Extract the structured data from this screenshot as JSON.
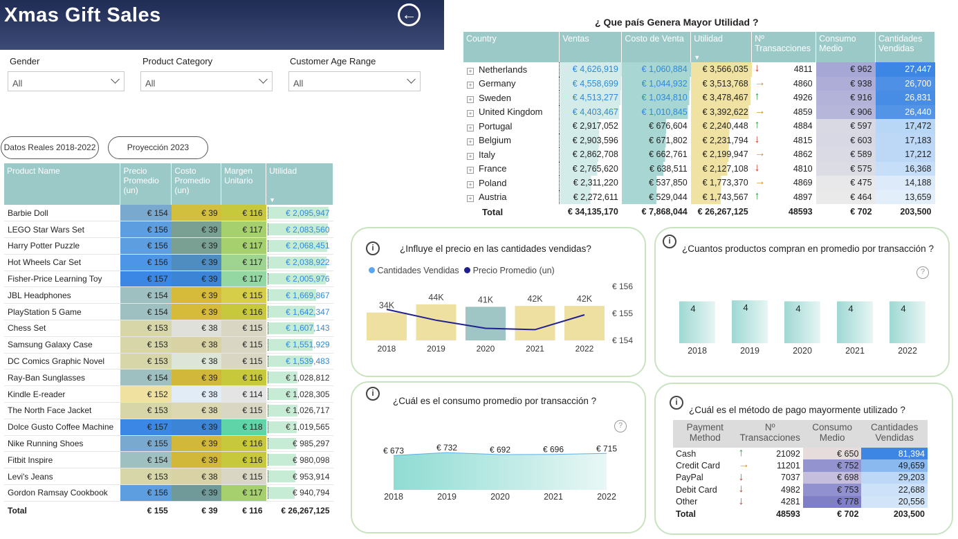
{
  "app_title": "Xmas Gift Sales",
  "back_icon": "arrow-left-circle-icon",
  "filters": [
    {
      "label": "Gender",
      "value": "All"
    },
    {
      "label": "Product Category",
      "value": "All"
    },
    {
      "label": "Customer Age Range",
      "value": "All"
    }
  ],
  "buttons": {
    "real": "Datos Reales 2018-2022",
    "proj": "Proyección 2023"
  },
  "products": {
    "headers": [
      "Product Name",
      "Precio Promedio (un)",
      "Costo Promedio (un)",
      "Margen Unitario",
      "Utilidad"
    ],
    "rows": [
      {
        "name": "Barbie Doll",
        "precio": "€ 154",
        "costo": "€ 39",
        "margen": "€ 116",
        "utilidad": "€ 2,095,947",
        "util_val": 2095947,
        "pc": "#7aa9cf",
        "cc": "#d2bf3e",
        "mc": "#c7c83b"
      },
      {
        "name": "LEGO Star Wars Set",
        "precio": "€ 156",
        "costo": "€ 39",
        "margen": "€ 117",
        "utilidad": "€ 2,083,560",
        "util_val": 2083560,
        "pc": "#5c9ee0",
        "cc": "#7aa093",
        "mc": "#a6cf6e"
      },
      {
        "name": "Harry Potter Puzzle",
        "precio": "€ 156",
        "costo": "€ 39",
        "margen": "€ 117",
        "utilidad": "€ 2,068,451",
        "util_val": 2068451,
        "pc": "#5c9ee0",
        "cc": "#7aa093",
        "mc": "#a6cf6e"
      },
      {
        "name": "Hot Wheels Car Set",
        "precio": "€ 156",
        "costo": "€ 39",
        "margen": "€ 117",
        "utilidad": "€ 2,038,922",
        "util_val": 2038922,
        "pc": "#4d95e6",
        "cc": "#4f8dc1",
        "mc": "#9ed48f"
      },
      {
        "name": "Fisher-Price Learning Toy",
        "precio": "€ 157",
        "costo": "€ 39",
        "margen": "€ 117",
        "utilidad": "€ 2,005,976",
        "util_val": 2005976,
        "pc": "#3b87e5",
        "cc": "#3c84d6",
        "mc": "#95d7a3"
      },
      {
        "name": "JBL Headphones",
        "precio": "€ 154",
        "costo": "€ 39",
        "margen": "€ 115",
        "utilidad": "€ 1,669,867",
        "util_val": 1669867,
        "pc": "#9ec0c0",
        "cc": "#d6bb3b",
        "mc": "#d6cd48"
      },
      {
        "name": "PlayStation 5 Game",
        "precio": "€ 154",
        "costo": "€ 39",
        "margen": "€ 116",
        "utilidad": "€ 1,642,347",
        "util_val": 1642347,
        "pc": "#9ec0c0",
        "cc": "#d6bb3b",
        "mc": "#c7c83b"
      },
      {
        "name": "Chess Set",
        "precio": "€ 153",
        "costo": "€ 38",
        "margen": "€ 115",
        "utilidad": "€ 1,607,143",
        "util_val": 1607143,
        "pc": "#d6d6a8",
        "cc": "#dfe0da",
        "mc": "#d9d7c4"
      },
      {
        "name": "Samsung Galaxy Case",
        "precio": "€ 153",
        "costo": "€ 38",
        "margen": "€ 115",
        "utilidad": "€ 1,551,929",
        "util_val": 1551929,
        "pc": "#d6d6a8",
        "cc": "#d8d2a4",
        "mc": "#d9d7c4"
      },
      {
        "name": "DC Comics Graphic Novel",
        "precio": "€ 153",
        "costo": "€ 38",
        "margen": "€ 115",
        "utilidad": "€ 1,539,483",
        "util_val": 1539483,
        "pc": "#d6d6a8",
        "cc": "#dde5d9",
        "mc": "#d9d7c4"
      },
      {
        "name": "Ray-Ban Sunglasses",
        "precio": "€ 154",
        "costo": "€ 39",
        "margen": "€ 116",
        "utilidad": "€ 1,028,812",
        "util_val": 1028812,
        "pc": "#9ec0c0",
        "cc": "#d2b83a",
        "mc": "#c7c83b"
      },
      {
        "name": "Kindle E-reader",
        "precio": "€ 152",
        "costo": "€ 38",
        "margen": "€ 114",
        "utilidad": "€ 1,028,305",
        "util_val": 1028305,
        "pc": "#f0e1a0",
        "cc": "#e1ecf7",
        "mc": "#e4e4e4"
      },
      {
        "name": "The North Face Jacket",
        "precio": "€ 153",
        "costo": "€ 38",
        "margen": "€ 115",
        "utilidad": "€ 1,026,717",
        "util_val": 1026717,
        "pc": "#d6d6a8",
        "cc": "#dbd8b2",
        "mc": "#d9d7c4"
      },
      {
        "name": "Dolce Gusto Coffee Machine",
        "precio": "€ 157",
        "costo": "€ 39",
        "margen": "€ 118",
        "utilidad": "€ 1,019,565",
        "util_val": 1019565,
        "pc": "#3b87e5",
        "cc": "#3c84d6",
        "mc": "#5fd4a8"
      },
      {
        "name": "Nike Running Shoes",
        "precio": "€ 155",
        "costo": "€ 39",
        "margen": "€ 116",
        "utilidad": "€ 985,297",
        "util_val": 985297,
        "pc": "#7aa9cf",
        "cc": "#d2b83a",
        "mc": "#c7c83b"
      },
      {
        "name": "Fitbit Inspire",
        "precio": "€ 154",
        "costo": "€ 39",
        "margen": "€ 116",
        "utilidad": "€ 980,098",
        "util_val": 980098,
        "pc": "#9ec0c0",
        "cc": "#d2b83a",
        "mc": "#c7c83b"
      },
      {
        "name": "Levi's Jeans",
        "precio": "€ 153",
        "costo": "€ 38",
        "margen": "€ 115",
        "utilidad": "€ 953,914",
        "util_val": 953914,
        "pc": "#d6d6a8",
        "cc": "#d8d2a4",
        "mc": "#d9d7c4"
      },
      {
        "name": "Gordon Ramsay Cookbook",
        "precio": "€ 156",
        "costo": "€ 39",
        "margen": "€ 117",
        "utilidad": "€ 940,794",
        "util_val": 940794,
        "pc": "#5c9ee0",
        "cc": "#6f9a99",
        "mc": "#a6cf6e"
      }
    ],
    "total": {
      "name": "Total",
      "precio": "€ 155",
      "costo": "€ 39",
      "margen": "€ 116",
      "utilidad": "€ 26,267,125"
    }
  },
  "countries": {
    "title": "¿ Que país Genera Mayor Utilidad ?",
    "headers": [
      "Country",
      "Ventas",
      "Costo de Venta",
      "Utilidad",
      "Nº Transacciones",
      "Consumo Medio",
      "Cantidades Vendidas"
    ],
    "rows": [
      {
        "name": "Netherlands",
        "ventas": "€ 4,626,919",
        "costo": "€ 1,060,884",
        "utilidad": "€ 3,566,035",
        "trend": "down",
        "trans": "4811",
        "consumo": "€ 962",
        "cant": "27,447",
        "v": 4626919,
        "c": 1060884,
        "u": 3566035,
        "cm": "#a7a7d6",
        "cq": "#3d86e3"
      },
      {
        "name": "Germany",
        "ventas": "€ 4,558,699",
        "costo": "€ 1,044,932",
        "utilidad": "€ 3,513,768",
        "trend": "side",
        "trans": "4860",
        "consumo": "€ 938",
        "cant": "26,700",
        "v": 4558699,
        "c": 1044932,
        "u": 3513768,
        "cm": "#adadd8",
        "cq": "#4d90e6"
      },
      {
        "name": "Sweden",
        "ventas": "€ 4,513,277",
        "costo": "€ 1,034,810",
        "utilidad": "€ 3,478,467",
        "trend": "up",
        "trans": "4926",
        "consumo": "€ 916",
        "cant": "26,831",
        "v": 4513277,
        "c": 1034810,
        "u": 3478467,
        "cm": "#b3b3da",
        "cq": "#488de5"
      },
      {
        "name": "United Kingdom",
        "ventas": "€ 4,403,467",
        "costo": "€ 1,010,845",
        "utilidad": "€ 3,392,622",
        "trend": "side",
        "trans": "4859",
        "consumo": "€ 906",
        "cant": "26,440",
        "v": 4403467,
        "c": 1010845,
        "u": 3392622,
        "cm": "#b6b6db",
        "cq": "#5394e7"
      },
      {
        "name": "Portugal",
        "ventas": "€ 2,917,052",
        "costo": "€ 676,604",
        "utilidad": "€ 2,240,448",
        "trend": "up",
        "trans": "4884",
        "consumo": "€ 597",
        "cant": "17,472",
        "v": 2917052,
        "c": 676604,
        "u": 2240448,
        "cm": "#d9d9e4",
        "cq": "#b8d6f6"
      },
      {
        "name": "Belgium",
        "ventas": "€ 2,903,596",
        "costo": "€ 671,802",
        "utilidad": "€ 2,231,794",
        "trend": "down",
        "trans": "4815",
        "consumo": "€ 603",
        "cant": "17,183",
        "v": 2903596,
        "c": 671802,
        "u": 2231794,
        "cm": "#d8d8e4",
        "cq": "#bcd8f6"
      },
      {
        "name": "Italy",
        "ventas": "€ 2,862,708",
        "costo": "€ 662,761",
        "utilidad": "€ 2,199,947",
        "trend": "side",
        "trans": "4862",
        "consumo": "€ 589",
        "cant": "17,212",
        "v": 2862708,
        "c": 662761,
        "u": 2199947,
        "cm": "#dadae4",
        "cq": "#bcd8f6"
      },
      {
        "name": "France",
        "ventas": "€ 2,765,620",
        "costo": "€ 638,511",
        "utilidad": "€ 2,127,108",
        "trend": "down",
        "trans": "4810",
        "consumo": "€ 575",
        "cant": "16,368",
        "v": 2765620,
        "c": 638511,
        "u": 2127108,
        "cm": "#dcdce5",
        "cq": "#c6def7"
      },
      {
        "name": "Poland",
        "ventas": "€ 2,311,220",
        "costo": "€ 537,850",
        "utilidad": "€ 1,773,370",
        "trend": "side",
        "trans": "4869",
        "consumo": "€ 475",
        "cant": "14,188",
        "v": 2311220,
        "c": 537850,
        "u": 1773370,
        "cm": "#e8e8ea",
        "cq": "#dceaf9"
      },
      {
        "name": "Austria",
        "ventas": "€ 2,272,611",
        "costo": "€ 529,044",
        "utilidad": "€ 1,743,567",
        "trend": "up",
        "trans": "4897",
        "consumo": "€ 464",
        "cant": "13,659",
        "v": 2272611,
        "c": 529044,
        "u": 1743567,
        "cm": "#eaeaea",
        "cq": "#e2eefa"
      }
    ],
    "total": {
      "name": "Total",
      "ventas": "€ 34,135,170",
      "costo": "€ 7,868,044",
      "utilidad": "€ 26,267,125",
      "trans": "48593",
      "consumo": "€ 702",
      "cant": "203,500"
    }
  },
  "card_price": {
    "title": "¿Influye el precio en las cantidades vendidas?",
    "legend": [
      "Cantidades Vendidas",
      "Precio Promedio (un)"
    ],
    "legend_colors": [
      "#5ba6f0",
      "#1f1f8f"
    ],
    "ticks": [
      "€ 156",
      "€ 155",
      "€ 154"
    ]
  },
  "card_products": {
    "title": "¿Cuantos productos compran en promedio por transacción ?"
  },
  "card_consumo": {
    "title": "¿Cuál es el consumo promedio por transacción ?"
  },
  "card_pay": {
    "title": "¿Cuál es el método de pago mayormente utilizado ?",
    "headers": [
      "Payment Method",
      "Nº Transacciones",
      "Consumo Medio",
      "Cantidades Vendidas"
    ],
    "rows": [
      {
        "name": "Cash",
        "trend": "up",
        "trans": "21092",
        "consumo": "€ 650",
        "cant": "81,394",
        "cm": "#e6dcdc",
        "cq": "#3d86e3"
      },
      {
        "name": "Credit Card",
        "trend": "side",
        "trans": "11201",
        "consumo": "€ 752",
        "cant": "49,659",
        "cm": "#9393d0",
        "cq": "#8ab9f0"
      },
      {
        "name": "PayPal",
        "trend": "down",
        "trans": "7037",
        "consumo": "€ 698",
        "cant": "29,203",
        "cm": "#c5bfdd",
        "cq": "#bcd8f6"
      },
      {
        "name": "Debit Card",
        "trend": "down",
        "trans": "4982",
        "consumo": "€ 753",
        "cant": "22,688",
        "cm": "#9191cf",
        "cq": "#cde2f8"
      },
      {
        "name": "Other",
        "trend": "down",
        "trans": "4281",
        "consumo": "€ 778",
        "cant": "20,556",
        "cm": "#7f7fc8",
        "cq": "#d2e5f8"
      }
    ],
    "total": {
      "name": "Total",
      "trans": "48593",
      "consumo": "€ 702",
      "cant": "203,500"
    }
  },
  "chart_data": [
    {
      "type": "bar",
      "title": "¿Influye el precio en las cantidades vendidas?",
      "categories": [
        "2018",
        "2019",
        "2020",
        "2021",
        "2022"
      ],
      "series": [
        {
          "name": "Cantidades Vendidas",
          "values": [
            34000,
            44000,
            41000,
            42000,
            42000
          ],
          "labels": [
            "34K",
            "44K",
            "41K",
            "42K",
            "42K"
          ],
          "colors": [
            "#ede0a1",
            "#ede0a1",
            "#9fc6c4",
            "#ede0a1",
            "#ede0a1"
          ]
        },
        {
          "name": "Precio Promedio (un)",
          "type": "line",
          "values": [
            155.15,
            154.75,
            154.45,
            154.4,
            154.95
          ],
          "color": "#1f1f8f"
        }
      ],
      "y2lim": [
        154,
        156
      ]
    },
    {
      "type": "bar",
      "title": "¿Cuantos productos compran en promedio por transacción ?",
      "categories": [
        "2018",
        "2019",
        "2020",
        "2021",
        "2022"
      ],
      "values": [
        4.2,
        4.3,
        4.2,
        4.2,
        4.2
      ],
      "labels": [
        "4",
        "4",
        "4",
        "4",
        "4"
      ]
    },
    {
      "type": "area",
      "title": "¿Cuál es el consumo promedio por transacción ?",
      "categories": [
        "2018",
        "2019",
        "2020",
        "2021",
        "2022"
      ],
      "values": [
        673,
        732,
        692,
        696,
        715
      ],
      "labels": [
        "€ 673",
        "€ 732",
        "€ 692",
        "€ 696",
        "€ 715"
      ]
    }
  ]
}
